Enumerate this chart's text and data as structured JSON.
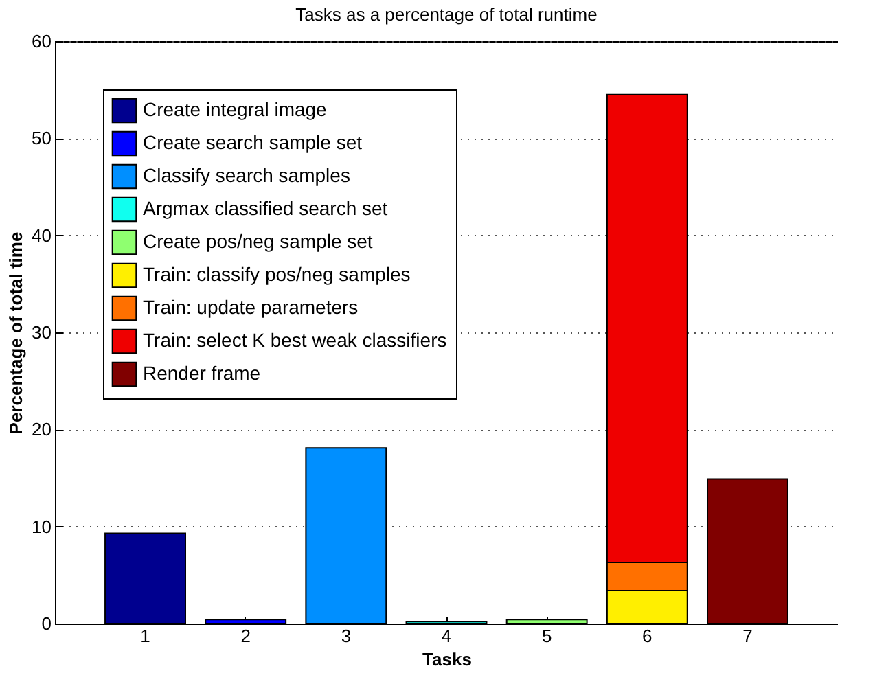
{
  "chart_data": {
    "type": "bar",
    "title": "Tasks as a percentage of total runtime",
    "xlabel": "Tasks",
    "ylabel": "Percentage of total time",
    "categories": [
      "1",
      "2",
      "3",
      "4",
      "5",
      "6",
      "7"
    ],
    "stacked": true,
    "ylim": [
      0,
      60
    ],
    "yticks": [
      0,
      10,
      20,
      30,
      40,
      50,
      60
    ],
    "grid": "y",
    "legend": "top left",
    "series": [
      {
        "name": "Create integral image",
        "color": "#00008f",
        "values": [
          9.3,
          null,
          null,
          null,
          null,
          null,
          null
        ]
      },
      {
        "name": "Create search sample set",
        "color": "#0000ff",
        "values": [
          null,
          0.4,
          null,
          null,
          null,
          null,
          null
        ]
      },
      {
        "name": "Classify search samples",
        "color": "#008fff",
        "values": [
          null,
          null,
          18.1,
          null,
          null,
          null,
          null
        ]
      },
      {
        "name": "Argmax classified search set",
        "color": "#10ffef",
        "values": [
          null,
          null,
          null,
          0.2,
          null,
          null,
          null
        ]
      },
      {
        "name": "Create pos/neg sample set",
        "color": "#8fff70",
        "values": [
          null,
          null,
          null,
          null,
          0.4,
          null,
          null
        ]
      },
      {
        "name": "Train: classify pos/neg samples",
        "color": "#ffef00",
        "values": [
          null,
          null,
          null,
          null,
          null,
          3.4,
          null
        ]
      },
      {
        "name": "Train: update parameters",
        "color": "#ff7000",
        "values": [
          null,
          null,
          null,
          null,
          null,
          2.9,
          null
        ]
      },
      {
        "name": "Train: select K best weak classifiers",
        "color": "#ef0000",
        "values": [
          null,
          null,
          null,
          null,
          null,
          48.2,
          null
        ]
      },
      {
        "name": "Render frame",
        "color": "#800000",
        "values": [
          null,
          null,
          null,
          null,
          null,
          null,
          14.9
        ]
      }
    ]
  }
}
